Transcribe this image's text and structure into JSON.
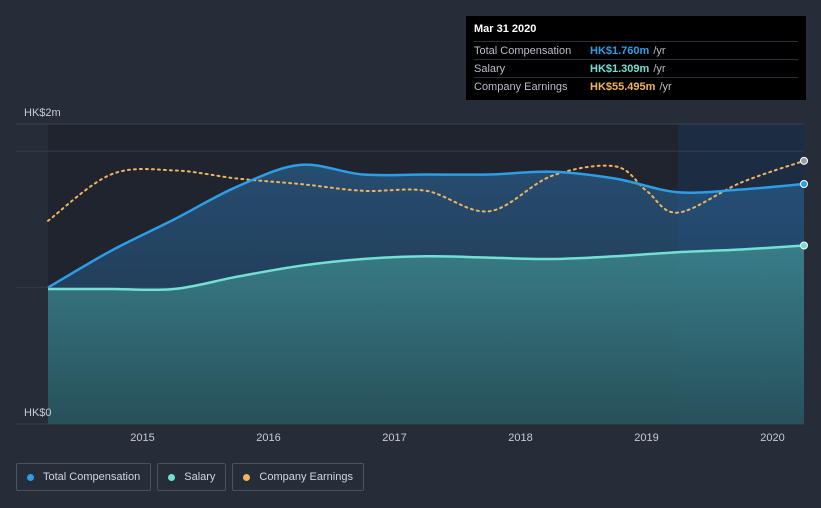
{
  "tooltip": {
    "date": "Mar 31 2020",
    "rows": [
      {
        "label": "Total Compensation",
        "value": "HK$1.760m",
        "unit": "/yr",
        "color": "#2d9de6"
      },
      {
        "label": "Salary",
        "value": "HK$1.309m",
        "unit": "/yr",
        "color": "#72e0d3"
      },
      {
        "label": "Company Earnings",
        "value": "HK$55.495m",
        "unit": "/yr",
        "color": "#f0b35e"
      }
    ]
  },
  "legend": [
    {
      "label": "Total Compensation",
      "color": "#2d9de6"
    },
    {
      "label": "Salary",
      "color": "#72e0d3"
    },
    {
      "label": "Company Earnings",
      "color": "#f0b35e"
    }
  ],
  "chart_data": {
    "type": "area",
    "title": "",
    "xlabel": "",
    "ylabel": "",
    "y_tick_labels": [
      "HK$0",
      "HK$2m"
    ],
    "ylim": [
      0,
      2.2
    ],
    "xlim": [
      2014.25,
      2020.25
    ],
    "x_ticks": [
      2015,
      2016,
      2017,
      2018,
      2019,
      2020
    ],
    "x_tick_labels": [
      "2015",
      "2016",
      "2017",
      "2018",
      "2019",
      "2020"
    ],
    "forecast_start": 2019.25,
    "series": [
      {
        "name": "Total Compensation",
        "color": "#2d9de6",
        "points": [
          [
            2014.25,
            1.0
          ],
          [
            2014.75,
            1.27
          ],
          [
            2015.25,
            1.5
          ],
          [
            2015.75,
            1.74
          ],
          [
            2016.25,
            1.9
          ],
          [
            2016.75,
            1.83
          ],
          [
            2017.25,
            1.83
          ],
          [
            2017.75,
            1.83
          ],
          [
            2018.25,
            1.85
          ],
          [
            2018.75,
            1.8
          ],
          [
            2019.25,
            1.7
          ],
          [
            2019.75,
            1.72
          ],
          [
            2020.25,
            1.76
          ]
        ]
      },
      {
        "name": "Salary",
        "color": "#72e0d3",
        "points": [
          [
            2014.25,
            0.99
          ],
          [
            2014.75,
            0.99
          ],
          [
            2015.25,
            0.99
          ],
          [
            2015.75,
            1.08
          ],
          [
            2016.25,
            1.16
          ],
          [
            2016.75,
            1.21
          ],
          [
            2017.25,
            1.23
          ],
          [
            2017.75,
            1.22
          ],
          [
            2018.25,
            1.21
          ],
          [
            2018.75,
            1.23
          ],
          [
            2019.25,
            1.26
          ],
          [
            2019.75,
            1.28
          ],
          [
            2020.25,
            1.309
          ]
        ]
      },
      {
        "name": "Company Earnings",
        "color": "#f0b35e",
        "axis": "secondary",
        "points": [
          [
            2014.25,
            1.49
          ],
          [
            2014.75,
            1.83
          ],
          [
            2015.25,
            1.86
          ],
          [
            2015.75,
            1.8
          ],
          [
            2016.25,
            1.76
          ],
          [
            2016.75,
            1.71
          ],
          [
            2017.25,
            1.71
          ],
          [
            2017.75,
            1.56
          ],
          [
            2018.25,
            1.82
          ],
          [
            2018.75,
            1.89
          ],
          [
            2019.0,
            1.71
          ],
          [
            2019.25,
            1.55
          ],
          [
            2019.75,
            1.77
          ],
          [
            2020.25,
            1.93
          ]
        ]
      }
    ]
  }
}
